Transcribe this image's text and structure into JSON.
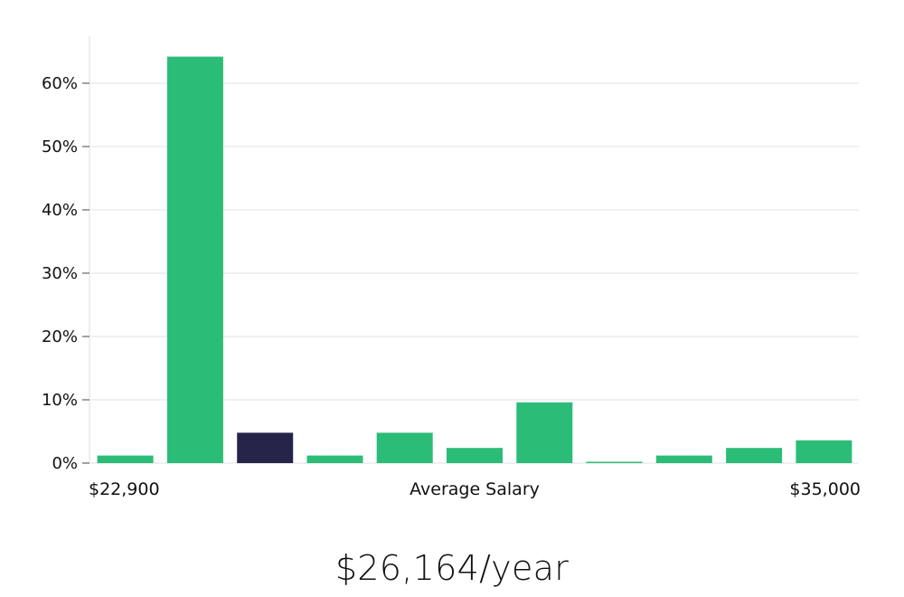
{
  "chart_data": {
    "type": "bar",
    "title": "",
    "xlabel": "Average Salary",
    "x_min_label": "$22,900",
    "x_max_label": "$35,000",
    "ylabel": "",
    "ylim": [
      0,
      67
    ],
    "y_ticks": [
      0,
      10,
      20,
      30,
      40,
      50,
      60
    ],
    "y_tick_labels": [
      "0%",
      "10%",
      "20%",
      "30%",
      "40%",
      "50%",
      "60%"
    ],
    "bins": 11,
    "values": [
      1.2,
      64.2,
      4.8,
      1.2,
      4.8,
      2.4,
      9.6,
      0.1,
      1.2,
      2.4,
      3.6
    ],
    "highlight_index": 2,
    "bar_color": "#2bbd77",
    "highlight_color": "#27244a",
    "grid": true
  },
  "summary": {
    "salary_text": "$26,164/year"
  }
}
